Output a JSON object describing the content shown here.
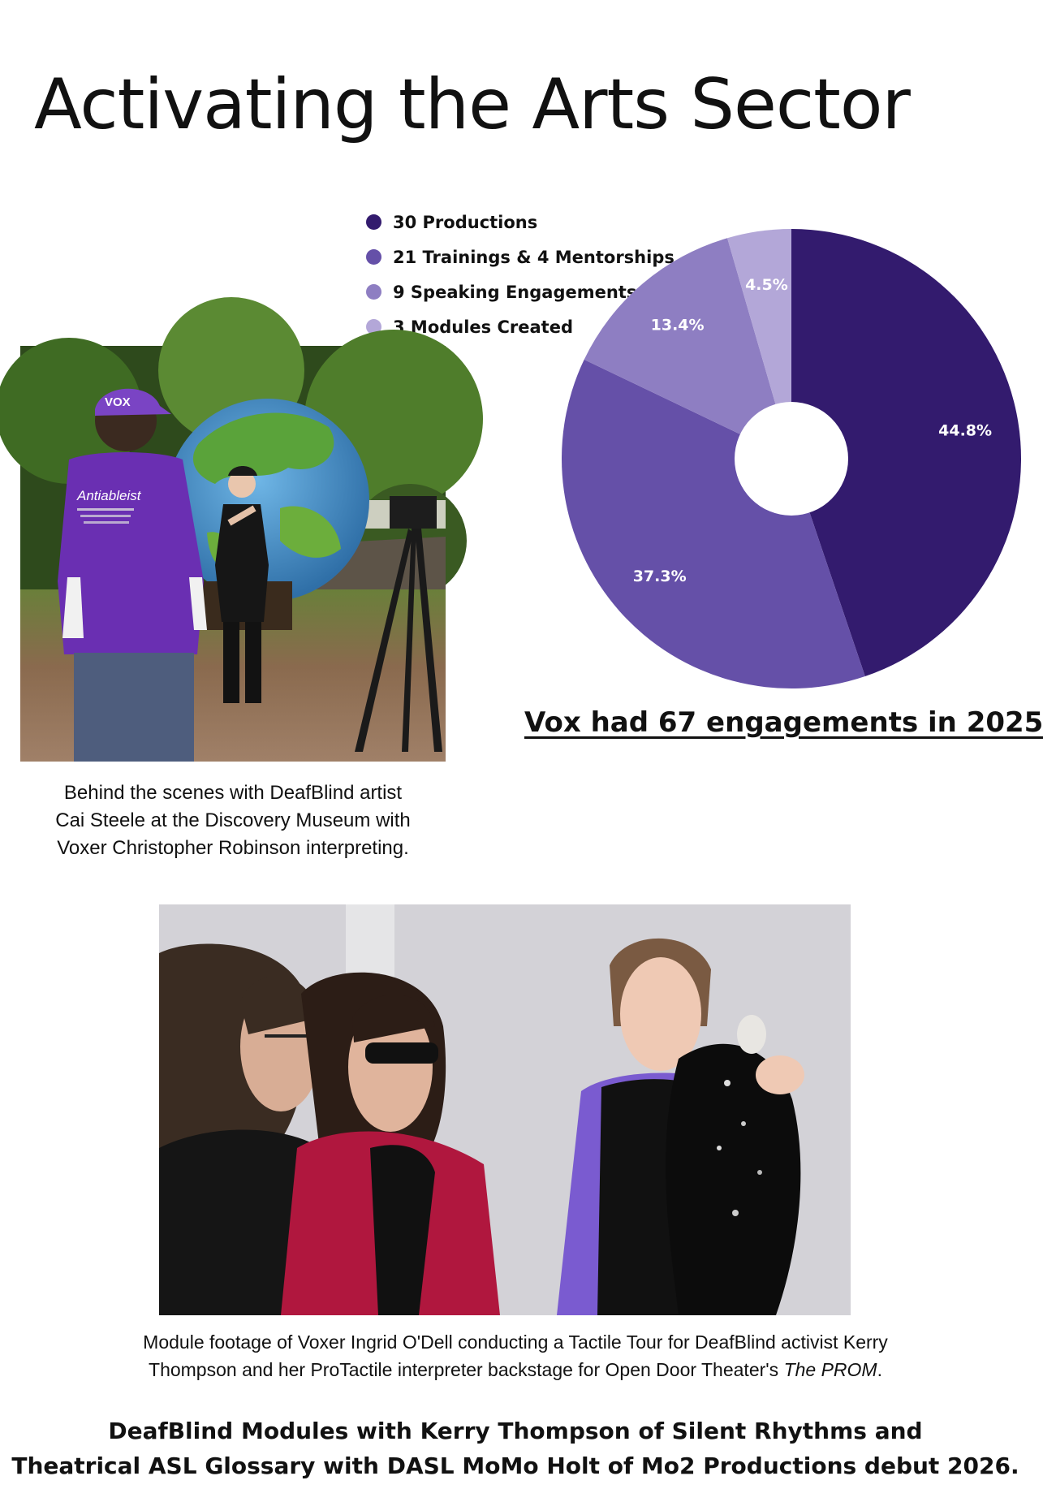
{
  "page": {
    "title": "Activating the Arts Sector",
    "chart_caption": "Vox had 67 engagements in 2025"
  },
  "chart_data": {
    "type": "pie",
    "donut": true,
    "legend_position": "top-left",
    "categories": [
      "30 Productions",
      "21 Trainings & 4 Mentorships",
      "9 Speaking Engagements",
      "3 Modules Created"
    ],
    "values": [
      44.8,
      37.3,
      13.4,
      4.5
    ],
    "labels": [
      "44.8%",
      "37.3%",
      "13.4%",
      "4.5%"
    ],
    "colors": [
      "#331b6e",
      "#6550a8",
      "#8e7ec2",
      "#b3a7d8"
    ]
  },
  "photo_1": {
    "shirt_text": "Antiableist",
    "cap_text": "VOX",
    "caption_lines": [
      "Behind the scenes with DeafBlind artist",
      "Cai Steele at the Discovery Museum with",
      "Voxer Christopher Robinson interpreting."
    ]
  },
  "photo_2": {
    "caption_line_1": "Module footage of Voxer Ingrid O'Dell conducting a Tactile Tour for DeafBlind activist Kerry",
    "caption_line_2_prefix": "Thompson and her ProTactile interpreter backstage for Open Door Theater's ",
    "caption_line_2_italic": "The PROM",
    "caption_line_2_suffix": "."
  },
  "footer": {
    "line_1": "DeafBlind Modules with Kerry Thompson of Silent Rhythms and",
    "line_2": "Theatrical ASL Glossary with DASL MoMo Holt of Mo2 Productions debut 2026."
  }
}
